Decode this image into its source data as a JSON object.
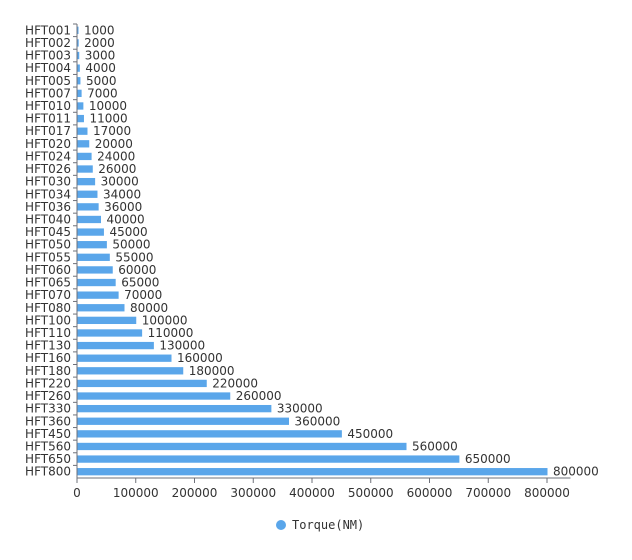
{
  "chart_data": {
    "type": "bar",
    "orientation": "horizontal",
    "categories": [
      "HFT001",
      "HFT002",
      "HFT003",
      "HFT004",
      "HFT005",
      "HFT007",
      "HFT010",
      "HFT011",
      "HFT017",
      "HFT020",
      "HFT024",
      "HFT026",
      "HFT030",
      "HFT034",
      "HFT036",
      "HFT040",
      "HFT045",
      "HFT050",
      "HFT055",
      "HFT060",
      "HFT065",
      "HFT070",
      "HFT080",
      "HFT100",
      "HFT110",
      "HFT130",
      "HFT160",
      "HFT180",
      "HFT220",
      "HFT260",
      "HFT330",
      "HFT360",
      "HFT450",
      "HFT560",
      "HFT650",
      "HFT800"
    ],
    "series": [
      {
        "name": "Torque(NM)",
        "color": "#5aa6ea",
        "values": [
          1000,
          2000,
          3000,
          4000,
          5000,
          7000,
          10000,
          11000,
          17000,
          20000,
          24000,
          26000,
          30000,
          34000,
          36000,
          40000,
          45000,
          50000,
          55000,
          60000,
          65000,
          70000,
          80000,
          100000,
          110000,
          130000,
          160000,
          180000,
          220000,
          260000,
          330000,
          360000,
          450000,
          560000,
          650000,
          800000
        ],
        "value_labels": [
          "1000",
          "2000",
          "3000",
          "4000",
          "5000",
          "7000",
          "10000",
          "11000",
          "17000",
          "20000",
          "24000",
          "26000",
          "30000",
          "34000",
          "36000",
          "40000",
          "45000",
          "50000",
          "55000",
          "60000",
          "65000",
          "70000",
          "80000",
          "100000",
          "110000",
          "130000",
          "160000",
          "180000",
          "220000",
          "260000",
          "330000",
          "360000",
          "450000",
          "560000",
          "650000",
          "800000"
        ]
      }
    ],
    "xlim": [
      0,
      840000
    ],
    "x_ticks": [
      0,
      100000,
      200000,
      300000,
      400000,
      500000,
      600000,
      700000,
      800000
    ],
    "x_tick_labels": [
      "0",
      "100000",
      "200000",
      "300000",
      "400000",
      "500000",
      "600000",
      "700000",
      "800000"
    ],
    "grid": false,
    "legend": {
      "placement": "bottom-center",
      "entries": [
        "Torque(NM)"
      ]
    },
    "title": "",
    "xlabel": "",
    "ylabel": ""
  }
}
